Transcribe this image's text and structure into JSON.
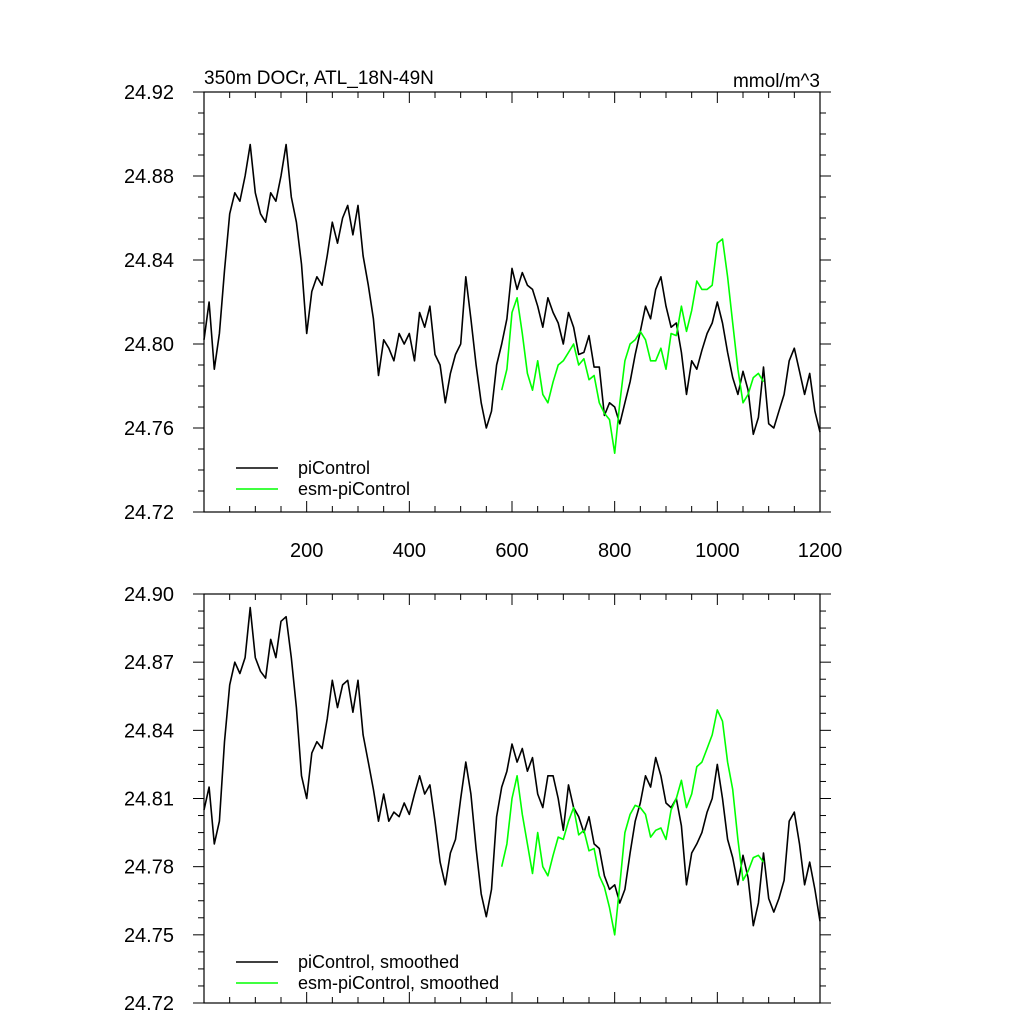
{
  "chart_data": [
    {
      "type": "line",
      "title": "350m DOCr, ATL_18N-49N",
      "units": "mmol/m^3",
      "xlim": [
        0,
        1200
      ],
      "ylim": [
        24.72,
        24.92
      ],
      "xticks": [
        200,
        400,
        600,
        800,
        1000,
        1200
      ],
      "xtick_labels": [
        "200",
        "400",
        "600",
        "800",
        "1000",
        "1200"
      ],
      "yticks": [
        24.72,
        24.76,
        24.8,
        24.84,
        24.88,
        24.92
      ],
      "ytick_labels": [
        "24.72",
        "24.76",
        "24.80",
        "24.84",
        "24.88",
        "24.92"
      ],
      "grid": false,
      "legend_position": "bottom-left",
      "series": [
        {
          "name": "piControl",
          "color": "#000000",
          "x": [
            0,
            10,
            20,
            30,
            40,
            50,
            60,
            70,
            80,
            90,
            100,
            110,
            120,
            130,
            140,
            150,
            160,
            170,
            180,
            190,
            200,
            210,
            220,
            230,
            240,
            250,
            260,
            270,
            280,
            290,
            300,
            310,
            320,
            330,
            340,
            350,
            360,
            370,
            380,
            390,
            400,
            410,
            420,
            430,
            440,
            450,
            460,
            470,
            480,
            490,
            500,
            510,
            520,
            530,
            540,
            550,
            560,
            570,
            580,
            590,
            600,
            610,
            620,
            630,
            640,
            650,
            660,
            670,
            680,
            690,
            700,
            710,
            720,
            730,
            740,
            750,
            760,
            770,
            780,
            790,
            800,
            810,
            820,
            830,
            840,
            850,
            860,
            870,
            880,
            890,
            900,
            910,
            920,
            930,
            940,
            950,
            960,
            970,
            980,
            990,
            1000,
            1010,
            1020,
            1030,
            1040,
            1050,
            1060,
            1070,
            1080,
            1090,
            1100,
            1110,
            1120,
            1130,
            1140,
            1150,
            1160,
            1170,
            1180,
            1190,
            1200
          ],
          "values": [
            24.802,
            24.82,
            24.788,
            24.805,
            24.835,
            24.862,
            24.872,
            24.868,
            24.88,
            24.895,
            24.872,
            24.862,
            24.858,
            24.872,
            24.868,
            24.88,
            24.895,
            24.87,
            24.858,
            24.838,
            24.805,
            24.825,
            24.832,
            24.828,
            24.842,
            24.858,
            24.848,
            24.86,
            24.866,
            24.852,
            24.866,
            24.842,
            24.828,
            24.812,
            24.785,
            24.802,
            24.798,
            24.792,
            24.805,
            24.8,
            24.805,
            24.792,
            24.815,
            24.808,
            24.818,
            24.795,
            24.79,
            24.772,
            24.786,
            24.795,
            24.8,
            24.832,
            24.812,
            24.79,
            24.772,
            24.76,
            24.768,
            24.79,
            24.8,
            24.812,
            24.836,
            24.826,
            24.834,
            24.828,
            24.826,
            24.818,
            24.808,
            24.822,
            24.815,
            24.81,
            24.8,
            24.815,
            24.808,
            24.795,
            24.796,
            24.804,
            24.789,
            24.789,
            24.766,
            24.772,
            24.77,
            24.762,
            24.772,
            24.782,
            24.795,
            24.806,
            24.818,
            24.812,
            24.826,
            24.832,
            24.818,
            24.808,
            24.81,
            24.796,
            24.776,
            24.792,
            24.788,
            24.797,
            24.805,
            24.81,
            24.82,
            24.81,
            24.796,
            24.784,
            24.776,
            24.787,
            24.778,
            24.757,
            24.765,
            24.789,
            24.762,
            24.76,
            24.768,
            24.776,
            24.792,
            24.798,
            24.787,
            24.776,
            24.786,
            24.768,
            24.758
          ]
        },
        {
          "name": "esm-piControl",
          "color": "#00ff00",
          "x": [
            580,
            590,
            600,
            610,
            620,
            630,
            640,
            650,
            660,
            670,
            680,
            690,
            700,
            710,
            720,
            730,
            740,
            750,
            760,
            770,
            780,
            790,
            800,
            810,
            820,
            830,
            840,
            850,
            860,
            870,
            880,
            890,
            900,
            910,
            920,
            930,
            940,
            950,
            960,
            970,
            980,
            990,
            1000,
            1010,
            1020,
            1030,
            1040,
            1050,
            1060,
            1070,
            1080,
            1090
          ],
          "values": [
            24.778,
            24.788,
            24.815,
            24.822,
            24.805,
            24.786,
            24.778,
            24.792,
            24.776,
            24.772,
            24.782,
            24.79,
            24.792,
            24.796,
            24.8,
            24.79,
            24.793,
            24.783,
            24.785,
            24.772,
            24.767,
            24.764,
            24.748,
            24.772,
            24.792,
            24.8,
            24.802,
            24.806,
            24.802,
            24.792,
            24.792,
            24.798,
            24.788,
            24.805,
            24.804,
            24.818,
            24.806,
            24.816,
            24.83,
            24.826,
            24.826,
            24.828,
            24.848,
            24.85,
            24.832,
            24.81,
            24.788,
            24.772,
            24.776,
            24.784,
            24.786,
            24.782
          ]
        }
      ]
    },
    {
      "type": "line",
      "xlim": [
        0,
        1200
      ],
      "ylim": [
        24.72,
        24.9
      ],
      "xticks": [
        200,
        400,
        600,
        800,
        1000,
        1200
      ],
      "yticks": [
        24.72,
        24.75,
        24.78,
        24.81,
        24.84,
        24.87,
        24.9
      ],
      "ytick_labels": [
        "24.72",
        "24.75",
        "24.78",
        "24.81",
        "24.84",
        "24.87",
        "24.90"
      ],
      "grid": false,
      "legend_position": "bottom-left",
      "series": [
        {
          "name": "piControl, smoothed",
          "color": "#000000",
          "x": [
            0,
            10,
            20,
            30,
            40,
            50,
            60,
            70,
            80,
            90,
            100,
            110,
            120,
            130,
            140,
            150,
            160,
            170,
            180,
            190,
            200,
            210,
            220,
            230,
            240,
            250,
            260,
            270,
            280,
            290,
            300,
            310,
            320,
            330,
            340,
            350,
            360,
            370,
            380,
            390,
            400,
            410,
            420,
            430,
            440,
            450,
            460,
            470,
            480,
            490,
            500,
            510,
            520,
            530,
            540,
            550,
            560,
            570,
            580,
            590,
            600,
            610,
            620,
            630,
            640,
            650,
            660,
            670,
            680,
            690,
            700,
            710,
            720,
            730,
            740,
            750,
            760,
            770,
            780,
            790,
            800,
            810,
            820,
            830,
            840,
            850,
            860,
            870,
            880,
            890,
            900,
            910,
            920,
            930,
            940,
            950,
            960,
            970,
            980,
            990,
            1000,
            1010,
            1020,
            1030,
            1040,
            1050,
            1060,
            1070,
            1080,
            1090,
            1100,
            1110,
            1120,
            1130,
            1140,
            1150,
            1160,
            1170,
            1180,
            1190,
            1200
          ],
          "values": [
            24.805,
            24.815,
            24.79,
            24.8,
            24.835,
            24.86,
            24.87,
            24.865,
            24.872,
            24.894,
            24.872,
            24.866,
            24.863,
            24.88,
            24.872,
            24.888,
            24.89,
            24.872,
            24.85,
            24.82,
            24.81,
            24.83,
            24.835,
            24.832,
            24.845,
            24.862,
            24.85,
            24.86,
            24.862,
            24.848,
            24.862,
            24.838,
            24.826,
            24.814,
            24.8,
            24.812,
            24.8,
            24.804,
            24.802,
            24.808,
            24.803,
            24.812,
            24.82,
            24.812,
            24.816,
            24.8,
            24.782,
            24.772,
            24.786,
            24.792,
            24.81,
            24.826,
            24.812,
            24.788,
            24.768,
            24.758,
            24.77,
            24.802,
            24.815,
            24.822,
            24.834,
            24.826,
            24.832,
            24.822,
            24.828,
            24.812,
            24.806,
            24.82,
            24.82,
            24.81,
            24.796,
            24.816,
            24.806,
            24.802,
            24.795,
            24.802,
            24.79,
            24.788,
            24.776,
            24.77,
            24.772,
            24.764,
            24.77,
            24.786,
            24.8,
            24.808,
            24.82,
            24.815,
            24.828,
            24.82,
            24.808,
            24.806,
            24.81,
            24.798,
            24.772,
            24.786,
            24.79,
            24.795,
            24.804,
            24.81,
            24.825,
            24.81,
            24.792,
            24.784,
            24.772,
            24.785,
            24.775,
            24.754,
            24.764,
            24.786,
            24.766,
            24.76,
            24.766,
            24.774,
            24.8,
            24.804,
            24.79,
            24.772,
            24.782,
            24.77,
            24.756
          ]
        },
        {
          "name": "esm-piControl, smoothed",
          "color": "#00ff00",
          "x": [
            580,
            590,
            600,
            610,
            620,
            630,
            640,
            650,
            660,
            670,
            680,
            690,
            700,
            710,
            720,
            730,
            740,
            750,
            760,
            770,
            780,
            790,
            800,
            810,
            820,
            830,
            840,
            850,
            860,
            870,
            880,
            890,
            900,
            910,
            920,
            930,
            940,
            950,
            960,
            970,
            980,
            990,
            1000,
            1010,
            1020,
            1030,
            1040,
            1050,
            1060,
            1070,
            1080,
            1090
          ],
          "values": [
            24.78,
            24.79,
            24.81,
            24.82,
            24.803,
            24.79,
            24.777,
            24.795,
            24.78,
            24.776,
            24.785,
            24.793,
            24.792,
            24.8,
            24.806,
            24.794,
            24.796,
            24.787,
            24.788,
            24.776,
            24.771,
            24.762,
            24.75,
            24.772,
            24.795,
            24.803,
            24.807,
            24.806,
            24.803,
            24.793,
            24.796,
            24.797,
            24.792,
            24.805,
            24.81,
            24.818,
            24.806,
            24.812,
            24.824,
            24.826,
            24.832,
            24.838,
            24.849,
            24.844,
            24.826,
            24.814,
            24.792,
            24.774,
            24.778,
            24.784,
            24.785,
            24.782
          ]
        }
      ]
    }
  ]
}
